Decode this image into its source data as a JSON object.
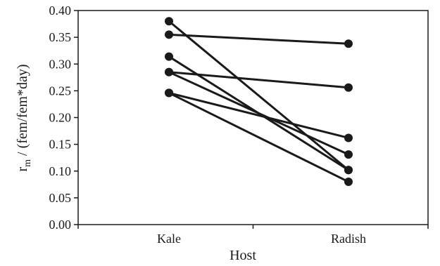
{
  "chart_data": {
    "type": "line",
    "categories": [
      "Kale",
      "Radish"
    ],
    "xlabel": "Host",
    "ylabel_main": "r",
    "ylabel_sub": "m",
    "ylabel_rest": " / (fem/fem*day)",
    "ylim": [
      0,
      0.4
    ],
    "yticks": [
      "0.00",
      "0.05",
      "0.10",
      "0.15",
      "0.20",
      "0.25",
      "0.30",
      "0.35",
      "0.40"
    ],
    "grid": false,
    "legend": "none",
    "line_color": "#1a1a1a",
    "series": [
      {
        "values": [
          0.38,
          0.102
        ]
      },
      {
        "values": [
          0.355,
          0.338
        ]
      },
      {
        "values": [
          0.314,
          0.102
        ]
      },
      {
        "values": [
          0.285,
          0.256
        ]
      },
      {
        "values": [
          0.285,
          0.131
        ]
      },
      {
        "values": [
          0.246,
          0.162
        ]
      },
      {
        "values": [
          0.246,
          0.08
        ]
      }
    ]
  }
}
